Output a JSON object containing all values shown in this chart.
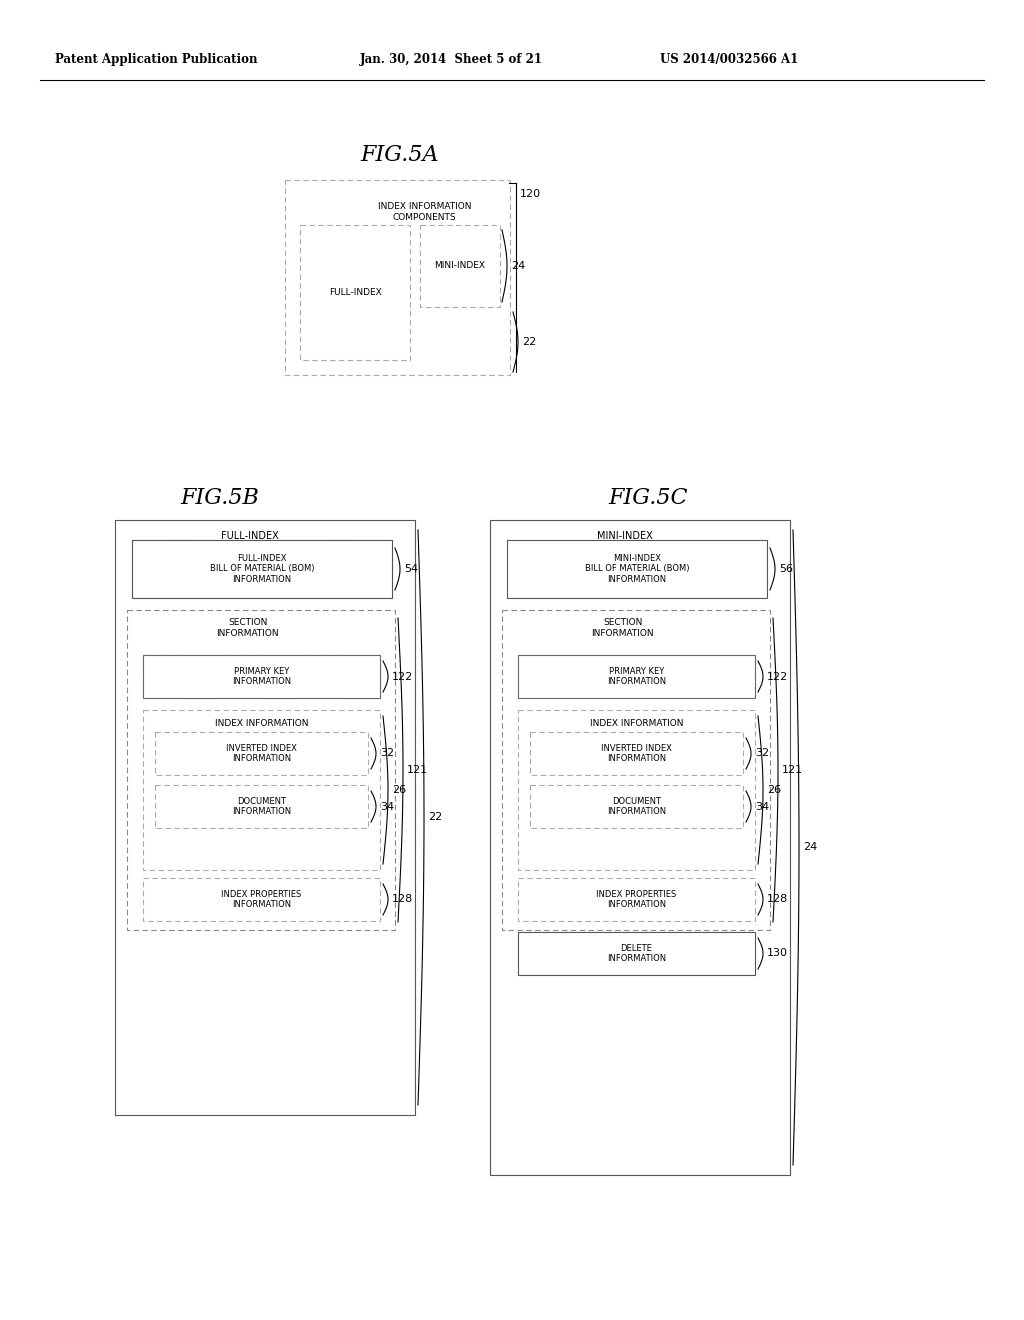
{
  "bg_color": "#ffffff",
  "header_left": "Patent Application Publication",
  "header_mid": "Jan. 30, 2014  Sheet 5 of 21",
  "header_right": "US 2014/0032566 A1"
}
